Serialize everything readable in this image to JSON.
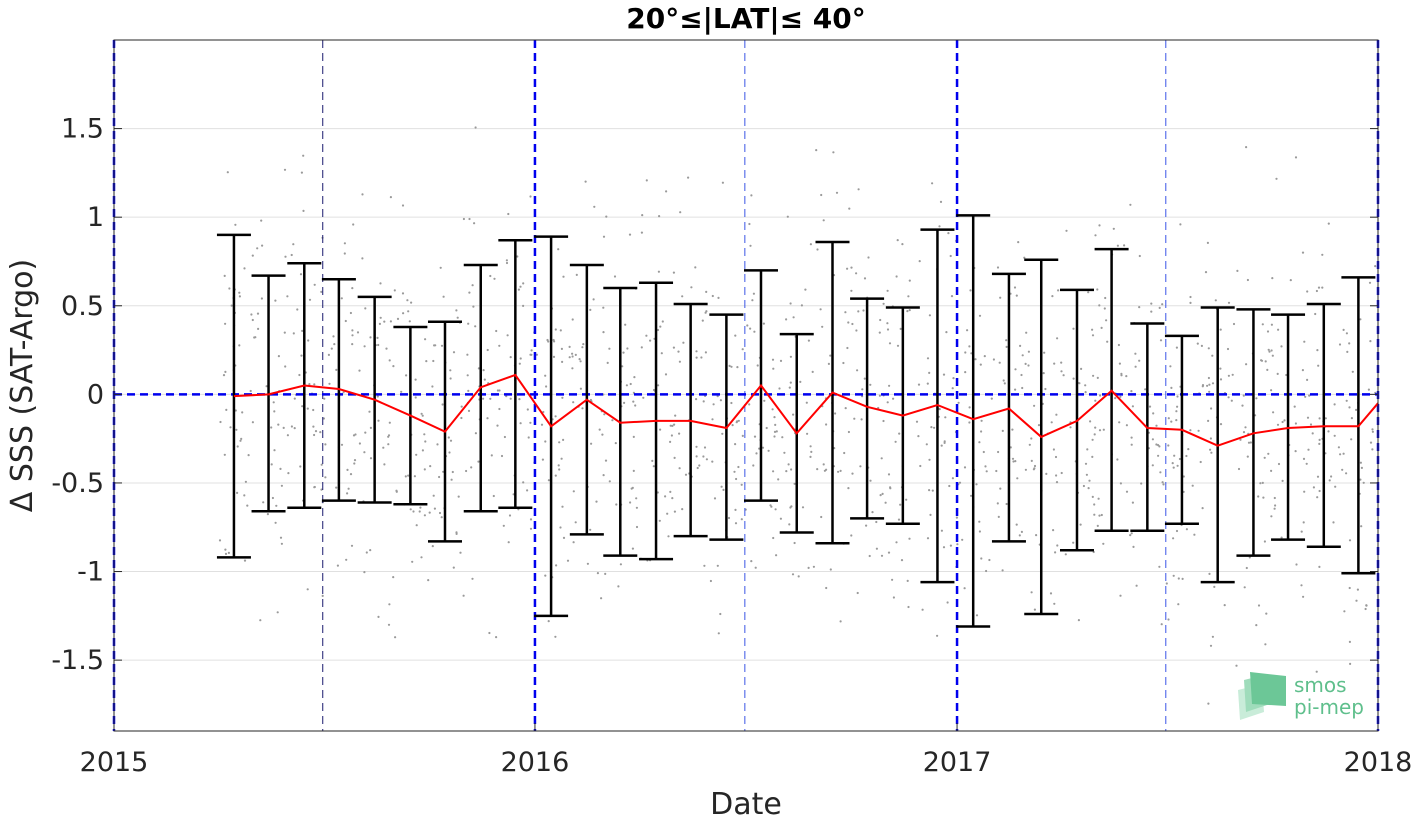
{
  "chart_data": {
    "type": "line",
    "title": "20°≤|LAT|≤ 40°",
    "xlabel": "Date",
    "ylabel": "Δ SSS (SAT-Argo)",
    "xlim": [
      "2015-01-01",
      "2018-01-01"
    ],
    "ylim": [
      -1.9,
      2.0
    ],
    "x_ticks": [
      {
        "date": "2015-01-01",
        "label": "2015"
      },
      {
        "date": "2016-01-01",
        "label": "2016"
      },
      {
        "date": "2017-01-01",
        "label": "2017"
      },
      {
        "date": "2018-01-01",
        "label": "2018"
      }
    ],
    "y_ticks": [
      {
        "value": 1.5,
        "label": "1.5"
      },
      {
        "value": 1,
        "label": "1"
      },
      {
        "value": 0.5,
        "label": "0.5"
      },
      {
        "value": 0,
        "label": "0"
      },
      {
        "value": -0.5,
        "label": "-0.5"
      },
      {
        "value": -1,
        "label": "-1"
      },
      {
        "value": -1.5,
        "label": "-1.5"
      }
    ],
    "grid": true,
    "zero_line": 0,
    "reference_lines": {
      "year_boundaries": [
        "2015-01-01",
        "2016-01-01",
        "2017-01-01",
        "2018-01-01"
      ],
      "mid_year": [
        "2015-07-01",
        "2016-07-01",
        "2017-07-01"
      ]
    },
    "series": [
      {
        "type": "line_errorbar",
        "color": "#ff0000",
        "errorbar_color": "#000000",
        "points": [
          {
            "x": "2015-04-15",
            "y": -0.01,
            "low": -0.92,
            "high": 0.9
          },
          {
            "x": "2015-05-15",
            "y": 0.0,
            "low": -0.66,
            "high": 0.67
          },
          {
            "x": "2015-06-15",
            "y": 0.05,
            "low": -0.64,
            "high": 0.74
          },
          {
            "x": "2015-07-15",
            "y": 0.03,
            "low": -0.6,
            "high": 0.65
          },
          {
            "x": "2015-08-15",
            "y": -0.03,
            "low": -0.61,
            "high": 0.55
          },
          {
            "x": "2015-09-15",
            "y": -0.12,
            "low": -0.62,
            "high": 0.38
          },
          {
            "x": "2015-10-15",
            "y": -0.21,
            "low": -0.83,
            "high": 0.41
          },
          {
            "x": "2015-11-15",
            "y": 0.04,
            "low": -0.66,
            "high": 0.73
          },
          {
            "x": "2015-12-15",
            "y": 0.11,
            "low": -0.64,
            "high": 0.87
          },
          {
            "x": "2016-01-15",
            "y": -0.18,
            "low": -1.25,
            "high": 0.89
          },
          {
            "x": "2016-02-15",
            "y": -0.03,
            "low": -0.79,
            "high": 0.73
          },
          {
            "x": "2016-03-15",
            "y": -0.16,
            "low": -0.91,
            "high": 0.6
          },
          {
            "x": "2016-04-15",
            "y": -0.15,
            "low": -0.93,
            "high": 0.63
          },
          {
            "x": "2016-05-15",
            "y": -0.15,
            "low": -0.8,
            "high": 0.51
          },
          {
            "x": "2016-06-15",
            "y": -0.19,
            "low": -0.82,
            "high": 0.45
          },
          {
            "x": "2016-07-15",
            "y": 0.05,
            "low": -0.6,
            "high": 0.7
          },
          {
            "x": "2016-08-15",
            "y": -0.22,
            "low": -0.78,
            "high": 0.34
          },
          {
            "x": "2016-09-15",
            "y": 0.01,
            "low": -0.84,
            "high": 0.86
          },
          {
            "x": "2016-10-15",
            "y": -0.07,
            "low": -0.7,
            "high": 0.54
          },
          {
            "x": "2016-11-15",
            "y": -0.12,
            "low": -0.73,
            "high": 0.49
          },
          {
            "x": "2016-12-15",
            "y": -0.06,
            "low": -1.06,
            "high": 0.93
          },
          {
            "x": "2017-01-15",
            "y": -0.14,
            "low": -1.31,
            "high": 1.01
          },
          {
            "x": "2017-02-15",
            "y": -0.08,
            "low": -0.83,
            "high": 0.68
          },
          {
            "x": "2017-03-15",
            "y": -0.24,
            "low": -1.24,
            "high": 0.76
          },
          {
            "x": "2017-04-15",
            "y": -0.15,
            "low": -0.88,
            "high": 0.59
          },
          {
            "x": "2017-05-15",
            "y": 0.02,
            "low": -0.77,
            "high": 0.82
          },
          {
            "x": "2017-06-15",
            "y": -0.19,
            "low": -0.77,
            "high": 0.4
          },
          {
            "x": "2017-07-15",
            "y": -0.2,
            "low": -0.73,
            "high": 0.33
          },
          {
            "x": "2017-08-15",
            "y": -0.29,
            "low": -1.06,
            "high": 0.49
          },
          {
            "x": "2017-09-15",
            "y": -0.22,
            "low": -0.91,
            "high": 0.48
          },
          {
            "x": "2017-10-15",
            "y": -0.19,
            "low": -0.82,
            "high": 0.45
          },
          {
            "x": "2017-11-15",
            "y": -0.18,
            "low": -0.86,
            "high": 0.51
          },
          {
            "x": "2017-12-15",
            "y": -0.18,
            "low": -1.01,
            "high": 0.66
          },
          {
            "x": "2018-01-01",
            "y": -0.05
          }
        ]
      },
      {
        "type": "scatter",
        "color": "#9a9a9a",
        "note_points": "individual match-up differences (gray dots)",
        "spread_sd": 0.55,
        "per_month": 40
      }
    ]
  },
  "logo": {
    "line1": "smos",
    "line2": "pi-mep",
    "color": "#5fbf8c"
  }
}
